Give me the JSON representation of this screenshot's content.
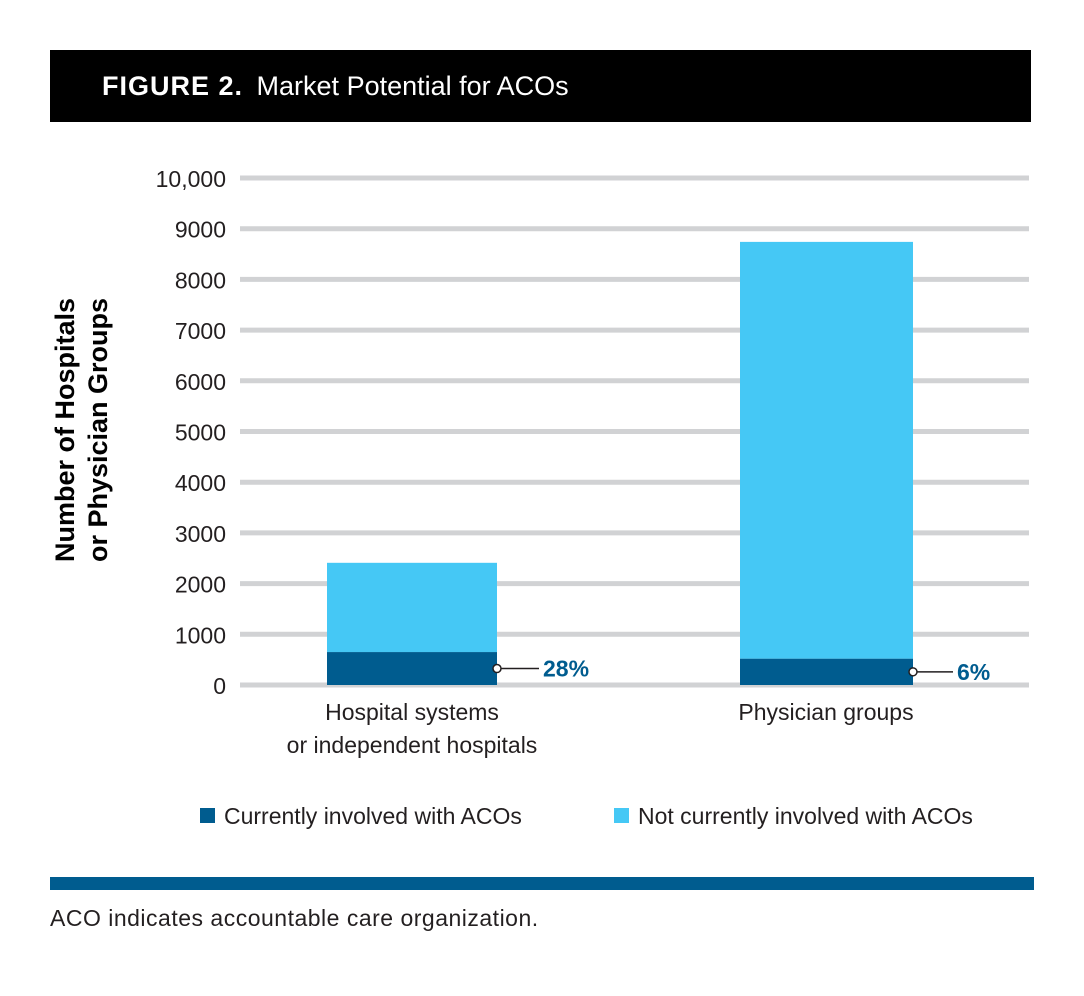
{
  "header": {
    "figure_label": "FIGURE 2.",
    "figure_title": "Market Potential for ACOs"
  },
  "chart_data": {
    "type": "bar",
    "stacked": true,
    "title": "Market Potential for ACOs",
    "ylabel_lines": [
      "Number of Hospitals",
      "or Physician Groups"
    ],
    "xlabel": "",
    "ylim": [
      0,
      10000
    ],
    "yticks": [
      0,
      1000,
      2000,
      3000,
      4000,
      5000,
      6000,
      7000,
      8000,
      9000,
      10000
    ],
    "ytick_labels": [
      "0",
      "1000",
      "2000",
      "3000",
      "4000",
      "5000",
      "6000",
      "7000",
      "8000",
      "9000",
      "10,000"
    ],
    "grid": true,
    "categories": [
      [
        "Hospital systems",
        "or independent hospitals"
      ],
      [
        "Physician groups"
      ]
    ],
    "series": [
      {
        "name": "Currently involved with ACOs",
        "color": "#005c8f",
        "values": [
          650,
          520
        ]
      },
      {
        "name": "Not currently involved with ACOs",
        "color": "#45c8f5",
        "values": [
          1760,
          8220
        ]
      }
    ],
    "annotations": [
      "28%",
      "6%"
    ],
    "annotation_color": "#005c8f",
    "legend": "bottom"
  },
  "footnote": "ACO indicates accountable care organization."
}
